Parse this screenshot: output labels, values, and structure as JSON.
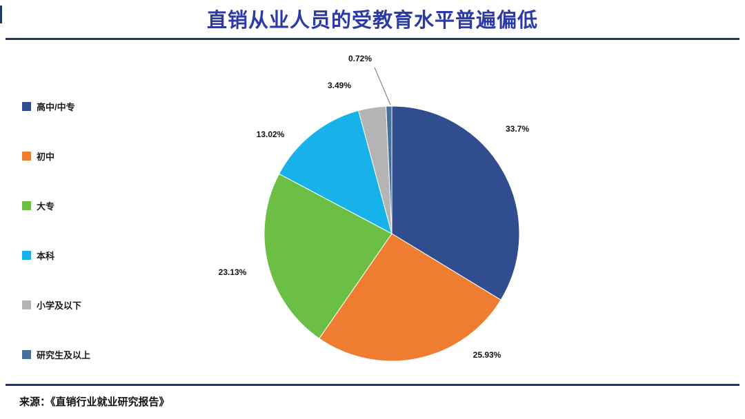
{
  "header": {
    "title": "直销从业人员的受教育水平普遍偏低"
  },
  "footer": {
    "source": "来源：《直销行业就业研究报告》"
  },
  "colors": {
    "title": "#2B3AA5",
    "divider": "#1F3864",
    "label_text": "#111111",
    "leader_line": "#8c8c8c"
  },
  "chart_data": {
    "type": "pie",
    "title": "直销从业人员的受教育水平普遍偏低",
    "legend_position": "left",
    "start_angle_deg": -90,
    "direction": "clockwise",
    "total": 100,
    "slices": [
      {
        "label": "高中/中专",
        "value": 33.7,
        "pct_label": "33.7%",
        "color": "#2F4D8F"
      },
      {
        "label": "初中",
        "value": 25.93,
        "pct_label": "25.93%",
        "color": "#EE7D31"
      },
      {
        "label": "大专",
        "value": 23.13,
        "pct_label": "23.13%",
        "color": "#6CBF45"
      },
      {
        "label": "本科",
        "value": 13.02,
        "pct_label": "13.02%",
        "color": "#18B2EA"
      },
      {
        "label": "小学及以下",
        "value": 3.49,
        "pct_label": "3.49%",
        "color": "#B4B4B4"
      },
      {
        "label": "研究生及以上",
        "value": 0.72,
        "pct_label": "0.72%",
        "color": "#44719C"
      }
    ]
  }
}
